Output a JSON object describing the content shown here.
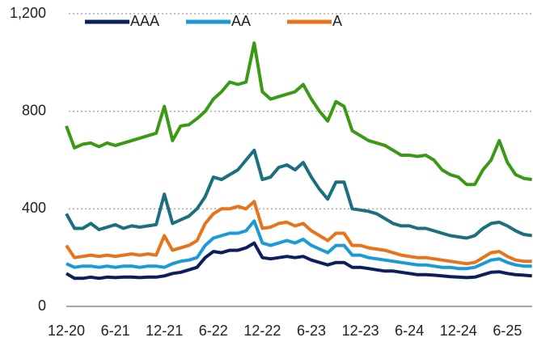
{
  "chart_data": {
    "type": "line",
    "categories": [
      "12-20",
      null,
      null,
      null,
      null,
      null,
      "6-21",
      null,
      null,
      null,
      null,
      null,
      "12-21",
      null,
      null,
      null,
      null,
      null,
      "6-22",
      null,
      null,
      null,
      null,
      null,
      "12-22",
      null,
      null,
      null,
      null,
      null,
      "6-23",
      null,
      null,
      null,
      null,
      null,
      "12-23",
      null,
      null,
      null,
      null,
      null,
      "6-24",
      null,
      null,
      null,
      null,
      null,
      "12-24",
      null,
      null,
      null,
      null,
      null,
      "6-25",
      null,
      null,
      null
    ],
    "series": [
      {
        "color": "#3a9a16",
        "values": [
          740,
          650,
          665,
          670,
          655,
          670,
          660,
          670,
          680,
          690,
          700,
          710,
          820,
          680,
          740,
          745,
          770,
          800,
          850,
          880,
          920,
          910,
          920,
          1080,
          880,
          850,
          860,
          870,
          880,
          910,
          850,
          800,
          760,
          840,
          820,
          720,
          700,
          680,
          670,
          660,
          640,
          620,
          620,
          615,
          620,
          600,
          560,
          540,
          530,
          500,
          500,
          560,
          600,
          680,
          590,
          540,
          525,
          520
        ]
      },
      {
        "color": "#1b6f7f",
        "values": [
          380,
          320,
          320,
          340,
          315,
          325,
          335,
          320,
          330,
          325,
          330,
          335,
          460,
          340,
          355,
          370,
          400,
          450,
          530,
          520,
          540,
          560,
          600,
          640,
          520,
          530,
          570,
          580,
          560,
          590,
          530,
          480,
          440,
          510,
          510,
          400,
          395,
          390,
          380,
          360,
          340,
          330,
          330,
          320,
          320,
          310,
          300,
          290,
          285,
          280,
          290,
          320,
          340,
          345,
          330,
          310,
          295,
          290
        ]
      },
      {
        "name": "A",
        "color": "#e8731a",
        "values": [
          250,
          200,
          205,
          210,
          205,
          210,
          205,
          210,
          215,
          210,
          215,
          210,
          290,
          230,
          240,
          250,
          270,
          340,
          380,
          400,
          400,
          410,
          400,
          430,
          320,
          325,
          340,
          345,
          330,
          340,
          310,
          290,
          270,
          300,
          300,
          250,
          250,
          240,
          235,
          230,
          220,
          210,
          205,
          200,
          200,
          195,
          190,
          185,
          180,
          175,
          180,
          200,
          220,
          225,
          205,
          190,
          185,
          185
        ]
      },
      {
        "name": "AA",
        "color": "#1a9ad6",
        "values": [
          175,
          160,
          165,
          165,
          160,
          165,
          160,
          165,
          165,
          160,
          165,
          165,
          160,
          175,
          185,
          190,
          200,
          250,
          280,
          290,
          300,
          300,
          310,
          350,
          260,
          250,
          260,
          270,
          260,
          275,
          250,
          235,
          220,
          250,
          250,
          210,
          210,
          200,
          195,
          190,
          185,
          180,
          175,
          170,
          170,
          165,
          160,
          160,
          155,
          155,
          160,
          175,
          190,
          195,
          180,
          170,
          165,
          165
        ]
      },
      {
        "name": "AAA",
        "color": "#0a1f5c",
        "values": [
          135,
          115,
          115,
          120,
          115,
          120,
          118,
          120,
          120,
          118,
          120,
          120,
          125,
          135,
          140,
          150,
          160,
          200,
          225,
          220,
          230,
          230,
          240,
          260,
          200,
          195,
          200,
          205,
          200,
          205,
          190,
          180,
          170,
          180,
          180,
          160,
          160,
          155,
          150,
          145,
          145,
          140,
          135,
          130,
          130,
          128,
          125,
          122,
          120,
          118,
          120,
          130,
          140,
          142,
          135,
          130,
          128,
          125
        ]
      }
    ],
    "ylim": [
      0,
      1200
    ],
    "yticks": [
      0,
      400,
      800,
      {
        "value": 1200,
        "label": "1,200"
      }
    ],
    "grid": true,
    "legend": "top"
  }
}
